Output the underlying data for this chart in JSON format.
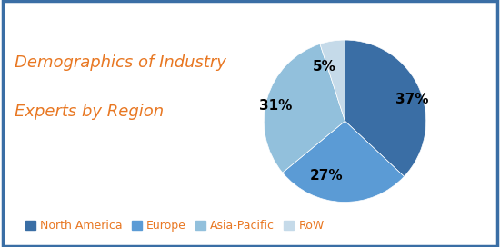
{
  "title_line1": "Demographics of Industry",
  "title_line2": "Experts by Region",
  "title_color": "#E87722",
  "title_fontsize": 13,
  "slices": [
    37,
    27,
    31,
    5
  ],
  "pct_labels": [
    "37%",
    "27%",
    "31%",
    "5%"
  ],
  "legend_labels": [
    "North America",
    "Europe",
    "Asia-Pacific",
    "RoW"
  ],
  "colors": [
    "#3A6EA5",
    "#5B9BD5",
    "#92C0DC",
    "#C5DAE9"
  ],
  "start_angle": 90,
  "background_color": "#FFFFFF",
  "border_color": "#3A6EA5",
  "label_fontsize": 11,
  "legend_fontsize": 9,
  "legend_color": "#E87722"
}
